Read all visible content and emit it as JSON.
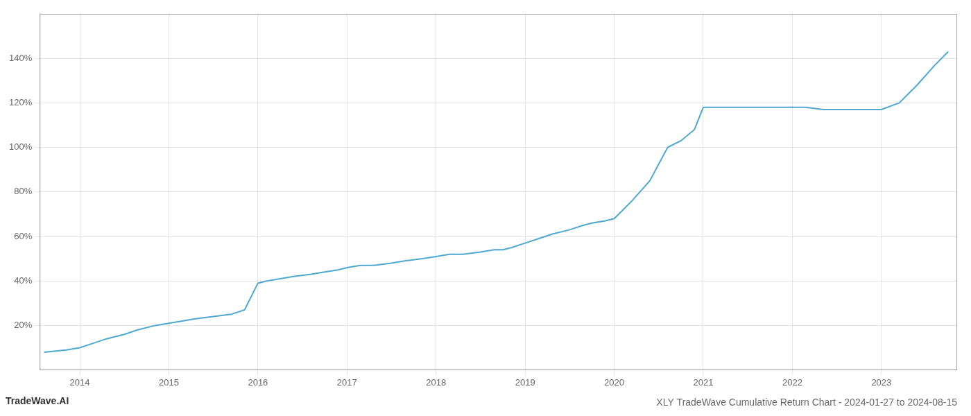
{
  "chart_data": {
    "type": "line",
    "title": "XLY TradeWave Cumulative Return Chart - 2024-01-27 to 2024-08-15",
    "annotations": [
      {
        "text": "TradeWave.AI"
      }
    ],
    "x": [
      2013.6,
      2013.85,
      2014.0,
      2014.15,
      2014.3,
      2014.5,
      2014.65,
      2014.85,
      2015.0,
      2015.15,
      2015.3,
      2015.5,
      2015.7,
      2015.85,
      2016.0,
      2016.1,
      2016.25,
      2016.4,
      2016.6,
      2016.75,
      2016.9,
      2017.0,
      2017.15,
      2017.3,
      2017.5,
      2017.65,
      2017.85,
      2018.0,
      2018.15,
      2018.3,
      2018.5,
      2018.65,
      2018.75,
      2018.85,
      2019.0,
      2019.15,
      2019.3,
      2019.5,
      2019.65,
      2019.75,
      2019.9,
      2020.0,
      2020.2,
      2020.4,
      2020.6,
      2020.75,
      2020.9,
      2021.0,
      2021.15,
      2021.3,
      2021.5,
      2021.65,
      2021.85,
      2022.0,
      2022.15,
      2022.35,
      2022.5,
      2022.65,
      2022.85,
      2023.0,
      2023.2,
      2023.4,
      2023.6,
      2023.75
    ],
    "values": [
      8,
      9,
      10,
      12,
      14,
      16,
      18,
      20,
      21,
      22,
      23,
      24,
      25,
      27,
      39,
      40,
      41,
      42,
      43,
      44,
      45,
      46,
      47,
      47,
      48,
      49,
      50,
      51,
      52,
      52,
      53,
      54,
      54,
      55,
      57,
      59,
      61,
      63,
      65,
      66,
      67,
      68,
      76,
      85,
      100,
      103,
      108,
      118,
      118,
      118,
      118,
      118,
      118,
      118,
      118,
      117,
      117,
      117,
      117,
      117,
      120,
      128,
      137,
      143
    ],
    "color": "#4ea8d2",
    "xlim": [
      2013.55,
      2023.85
    ],
    "xticks": [
      2014,
      2015,
      2016,
      2017,
      2018,
      2019,
      2020,
      2021,
      2022,
      2023
    ],
    "ylim": [
      0,
      160
    ],
    "yticks": [
      {
        "value": 20,
        "label": "20%"
      },
      {
        "value": 40,
        "label": "40%"
      },
      {
        "value": 60,
        "label": "60%"
      },
      {
        "value": 80,
        "label": "80%"
      },
      {
        "value": 100,
        "label": "100%"
      },
      {
        "value": 120,
        "label": "120%"
      },
      {
        "value": 140,
        "label": "140%"
      }
    ],
    "grid": true
  }
}
